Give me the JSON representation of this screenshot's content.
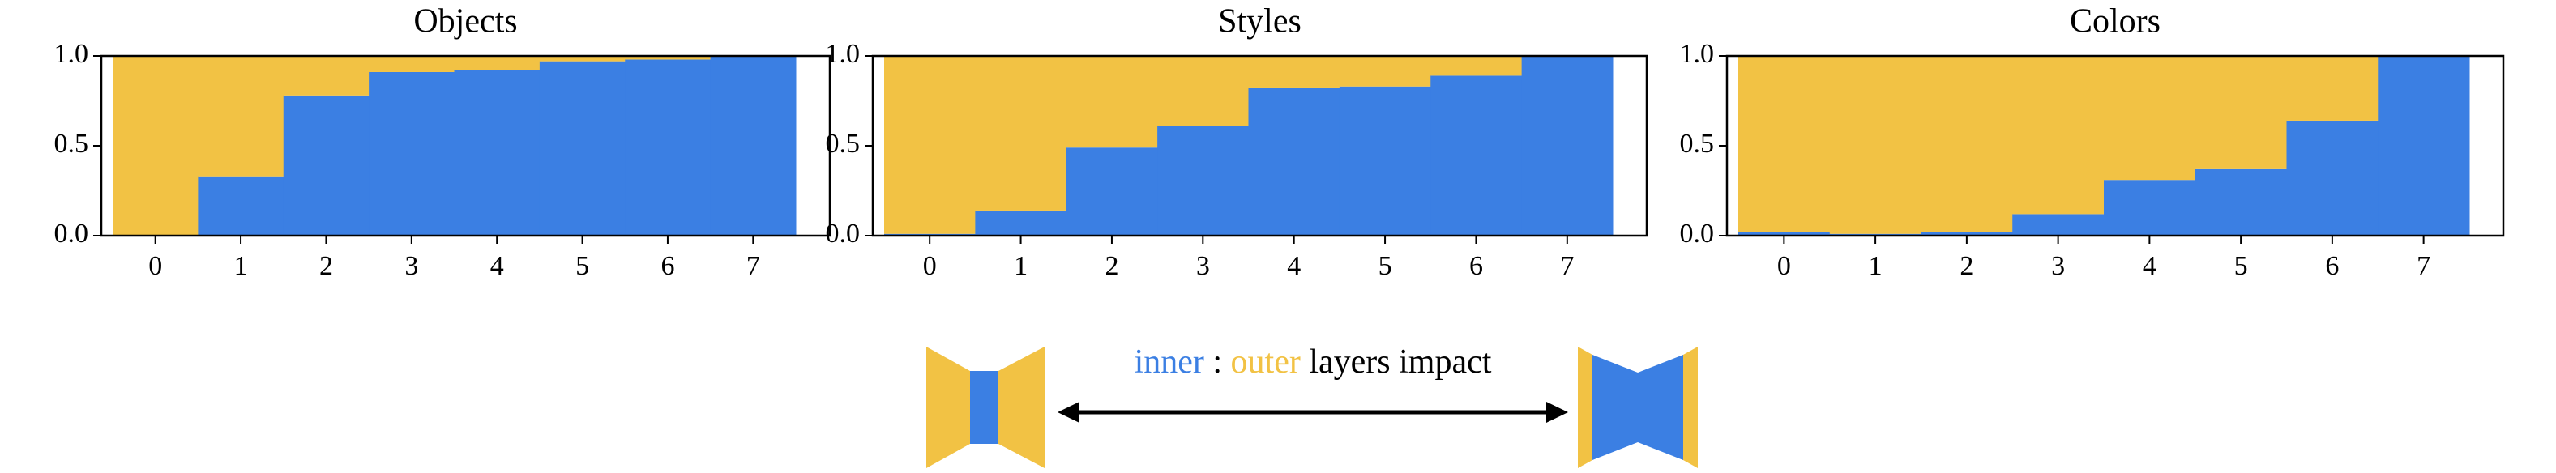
{
  "chart_data": [
    {
      "type": "bar",
      "stacked": true,
      "title": "Objects",
      "categories": [
        "0",
        "1",
        "2",
        "3",
        "4",
        "5",
        "6",
        "7"
      ],
      "series": [
        {
          "name": "inner",
          "color": "#3b7fe3",
          "values": [
            0,
            0.33,
            0.78,
            0.91,
            0.92,
            0.97,
            0.98,
            1.0
          ]
        },
        {
          "name": "outer",
          "color": "#f2c244",
          "values": [
            1.0,
            0.67,
            0.22,
            0.09,
            0.08,
            0.03,
            0.02,
            0
          ]
        }
      ],
      "ylim": [
        0,
        1
      ],
      "yticks": [
        {
          "value": 0,
          "label": "0.0"
        },
        0.5,
        {
          "value": 1,
          "label": "1.0"
        }
      ]
    },
    {
      "type": "bar",
      "stacked": true,
      "title": "Styles",
      "categories": [
        "0",
        "1",
        "2",
        "3",
        "4",
        "5",
        "6",
        "7"
      ],
      "series": [
        {
          "name": "inner",
          "color": "#3b7fe3",
          "values": [
            0.01,
            0.14,
            0.49,
            0.61,
            0.82,
            0.83,
            0.89,
            1.0
          ]
        },
        {
          "name": "outer",
          "color": "#f2c244",
          "values": [
            0.99,
            0.86,
            0.51,
            0.39,
            0.18,
            0.17,
            0.11,
            0
          ]
        }
      ],
      "ylim": [
        0,
        1
      ],
      "yticks": [
        {
          "value": 0,
          "label": "0.0"
        },
        0.5,
        {
          "value": 1,
          "label": "1.0"
        }
      ]
    },
    {
      "type": "bar",
      "stacked": true,
      "title": "Colors",
      "categories": [
        "0",
        "1",
        "2",
        "3",
        "4",
        "5",
        "6",
        "7"
      ],
      "series": [
        {
          "name": "inner",
          "color": "#3b7fe3",
          "values": [
            0.02,
            0.01,
            0.02,
            0.12,
            0.31,
            0.37,
            0.64,
            1.0
          ]
        },
        {
          "name": "outer",
          "color": "#f2c244",
          "values": [
            0.98,
            0.99,
            0.98,
            0.88,
            0.69,
            0.63,
            0.36,
            0
          ]
        }
      ],
      "ylim": [
        0,
        1
      ],
      "yticks": [
        {
          "value": 0,
          "label": "0.0"
        },
        0.5,
        {
          "value": 1,
          "label": "1.0"
        }
      ]
    }
  ],
  "legend": {
    "separator": ":",
    "text": "layers impact"
  }
}
